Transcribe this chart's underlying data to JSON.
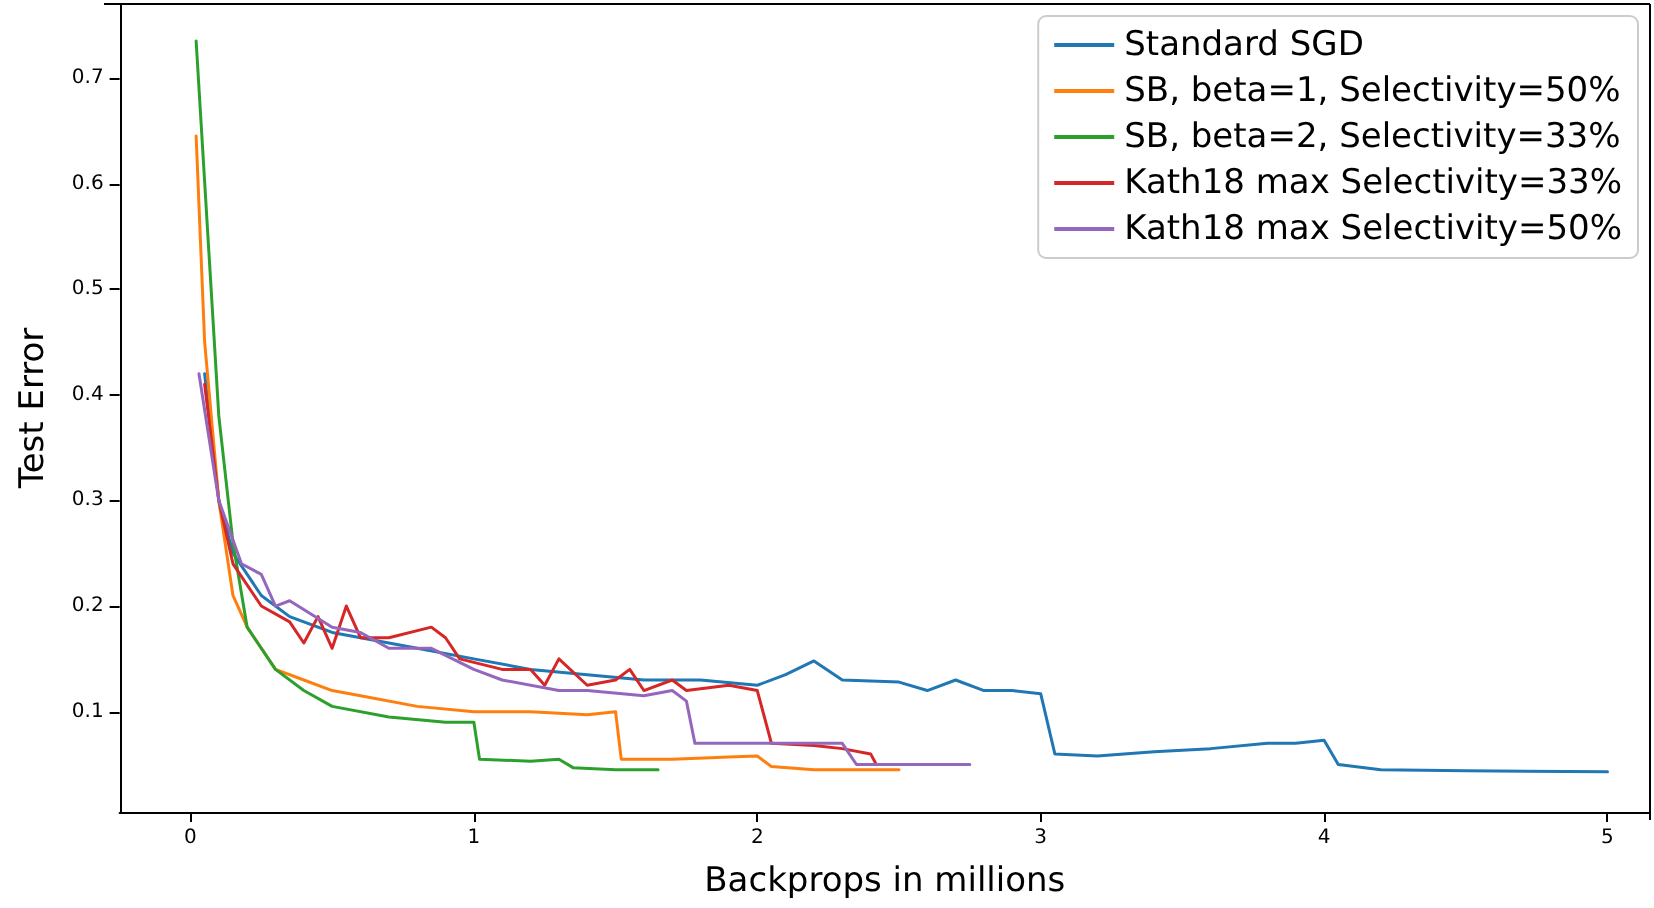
{
  "chart_data": {
    "type": "line",
    "xlabel": "Backprops in millions",
    "ylabel": "Test Error",
    "xlim": [
      -0.25,
      5.15
    ],
    "ylim": [
      0.005,
      0.77
    ],
    "xticks": [
      0,
      1,
      2,
      3,
      4,
      5
    ],
    "yticks": [
      0.1,
      0.2,
      0.3,
      0.4,
      0.5,
      0.6,
      0.7
    ],
    "grid": false,
    "legend": "top right",
    "marker": "none",
    "line_style": "solid",
    "series": [
      {
        "name": "Standard SGD",
        "color": "#1f77b4",
        "x": [
          0.05,
          0.1,
          0.15,
          0.25,
          0.35,
          0.5,
          0.6,
          0.8,
          1.0,
          1.2,
          1.4,
          1.6,
          1.8,
          2.0,
          2.1,
          2.2,
          2.3,
          2.5,
          2.6,
          2.7,
          2.8,
          2.9,
          3.0,
          3.05,
          3.2,
          3.4,
          3.6,
          3.8,
          3.9,
          4.0,
          4.05,
          4.2,
          4.5,
          5.0
        ],
        "values": [
          0.42,
          0.3,
          0.25,
          0.21,
          0.19,
          0.175,
          0.17,
          0.16,
          0.15,
          0.14,
          0.135,
          0.13,
          0.13,
          0.125,
          0.135,
          0.148,
          0.13,
          0.128,
          0.12,
          0.13,
          0.12,
          0.12,
          0.117,
          0.06,
          0.058,
          0.062,
          0.065,
          0.07,
          0.07,
          0.073,
          0.05,
          0.045,
          0.044,
          0.043
        ]
      },
      {
        "name": "SB, beta=1, Selectivity=50%",
        "color": "#ff7f0e",
        "x": [
          0.02,
          0.05,
          0.1,
          0.15,
          0.2,
          0.3,
          0.4,
          0.5,
          0.6,
          0.8,
          1.0,
          1.2,
          1.4,
          1.5,
          1.52,
          1.7,
          1.9,
          2.0,
          2.05,
          2.2,
          2.5
        ],
        "values": [
          0.645,
          0.45,
          0.3,
          0.21,
          0.18,
          0.14,
          0.13,
          0.12,
          0.115,
          0.105,
          0.1,
          0.1,
          0.097,
          0.1,
          0.055,
          0.055,
          0.057,
          0.058,
          0.048,
          0.045,
          0.045
        ]
      },
      {
        "name": "SB, beta=2, Selectivity=33%",
        "color": "#2ca02c",
        "x": [
          0.02,
          0.1,
          0.15,
          0.2,
          0.3,
          0.4,
          0.5,
          0.7,
          0.9,
          1.0,
          1.02,
          1.2,
          1.3,
          1.35,
          1.5,
          1.65
        ],
        "values": [
          0.735,
          0.38,
          0.26,
          0.18,
          0.14,
          0.12,
          0.105,
          0.095,
          0.09,
          0.09,
          0.055,
          0.053,
          0.055,
          0.047,
          0.045,
          0.045
        ]
      },
      {
        "name": "Kath18 max Selectivity=33%",
        "color": "#d62728",
        "x": [
          0.05,
          0.1,
          0.15,
          0.25,
          0.35,
          0.4,
          0.45,
          0.5,
          0.55,
          0.6,
          0.7,
          0.85,
          0.9,
          0.95,
          1.1,
          1.2,
          1.25,
          1.3,
          1.4,
          1.5,
          1.55,
          1.6,
          1.7,
          1.75,
          1.9,
          2.0,
          2.05,
          2.2,
          2.3,
          2.4,
          2.42
        ],
        "values": [
          0.41,
          0.3,
          0.24,
          0.2,
          0.185,
          0.165,
          0.19,
          0.16,
          0.2,
          0.17,
          0.17,
          0.18,
          0.17,
          0.15,
          0.14,
          0.14,
          0.125,
          0.15,
          0.125,
          0.13,
          0.14,
          0.12,
          0.13,
          0.12,
          0.125,
          0.12,
          0.07,
          0.068,
          0.065,
          0.06,
          0.05
        ]
      },
      {
        "name": "Kath18 max Selectivity=50%",
        "color": "#9467bd",
        "x": [
          0.03,
          0.1,
          0.18,
          0.25,
          0.3,
          0.35,
          0.5,
          0.6,
          0.7,
          0.85,
          1.0,
          1.1,
          1.3,
          1.4,
          1.6,
          1.7,
          1.75,
          1.78,
          1.9,
          2.0,
          2.3,
          2.35,
          2.5,
          2.75
        ],
        "values": [
          0.42,
          0.3,
          0.24,
          0.23,
          0.2,
          0.205,
          0.18,
          0.175,
          0.16,
          0.16,
          0.14,
          0.13,
          0.12,
          0.12,
          0.115,
          0.12,
          0.11,
          0.07,
          0.07,
          0.07,
          0.07,
          0.05,
          0.05,
          0.05
        ]
      }
    ]
  }
}
